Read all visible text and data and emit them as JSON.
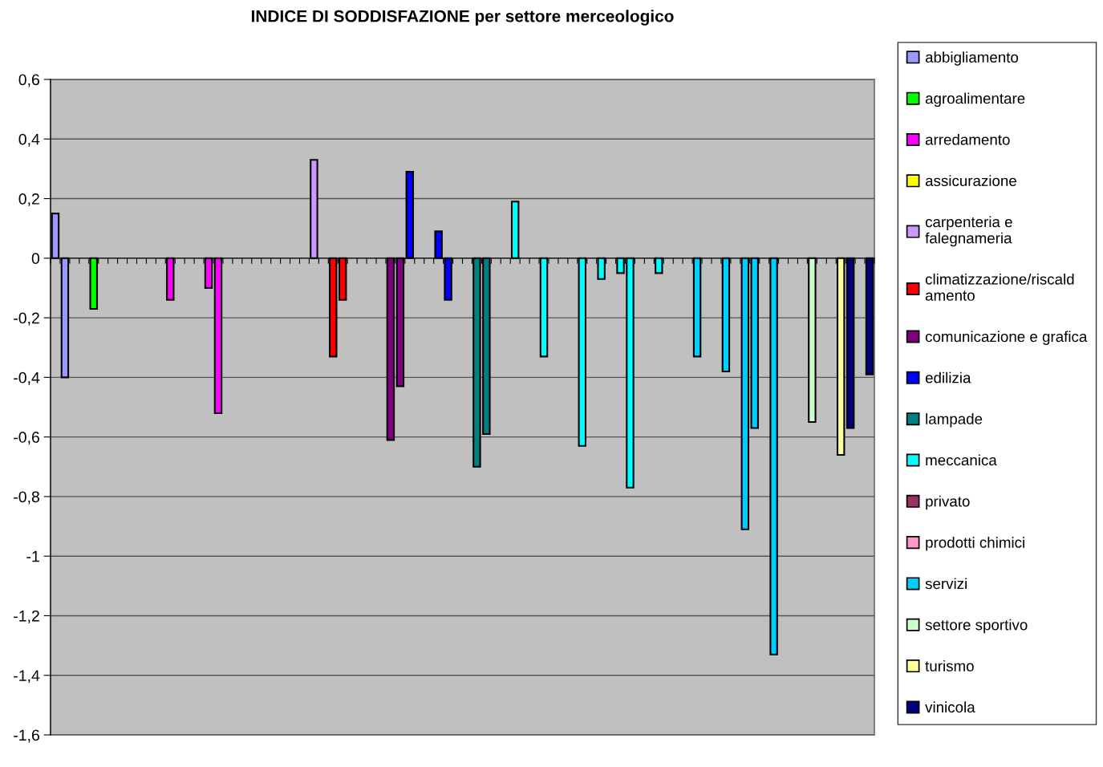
{
  "chart_data": {
    "type": "bar",
    "title": "INDICE DI SODDISFAZIONE per settore merceologico",
    "categories": [
      null,
      null,
      null,
      null,
      null,
      null,
      null,
      null,
      null,
      null,
      null,
      null,
      null,
      null,
      null,
      null,
      null,
      null,
      null,
      null,
      null,
      null,
      null,
      null,
      null,
      null,
      null,
      null,
      null,
      null,
      null,
      null,
      null,
      null,
      null,
      null,
      null,
      null,
      null,
      null,
      null,
      null,
      null,
      null,
      null,
      null,
      null,
      null,
      null,
      null,
      null,
      null,
      null,
      null,
      null,
      null,
      null,
      null,
      null,
      null,
      null,
      null,
      null,
      null,
      null,
      null,
      null,
      null,
      null,
      null,
      null,
      null,
      null,
      null,
      null,
      null,
      null,
      null,
      null,
      null,
      null,
      null,
      null,
      null,
      null,
      null
    ],
    "series": [
      {
        "name": "abbigliamento",
        "color": "#9999ff",
        "values": [
          0.15,
          -0.4,
          null,
          null,
          null,
          null,
          null,
          null,
          null,
          null,
          null,
          null,
          null,
          null,
          null,
          null,
          null,
          null,
          null,
          null,
          null,
          null,
          null,
          null,
          null,
          null,
          null,
          null,
          null,
          null,
          null,
          null,
          null,
          null,
          null,
          null,
          null,
          null,
          null,
          null,
          null,
          null,
          null,
          null,
          null,
          null,
          null,
          null,
          null,
          null,
          null,
          null,
          null,
          null,
          null,
          null,
          null,
          null,
          null,
          null,
          null,
          null,
          null,
          null,
          null,
          null,
          null,
          null,
          null,
          null,
          null,
          null,
          null,
          null,
          null,
          null,
          null,
          null,
          null,
          null,
          null,
          null,
          null,
          null,
          null,
          null
        ]
      },
      {
        "name": "agroalimentare",
        "color": "#00ff00",
        "values": [
          null,
          null,
          null,
          null,
          -0.17,
          null,
          null,
          null,
          null,
          null,
          null,
          null,
          null,
          null,
          null,
          null,
          null,
          null,
          null,
          null,
          null,
          null,
          null,
          null,
          null,
          null,
          null,
          null,
          null,
          null,
          null,
          null,
          null,
          null,
          null,
          null,
          null,
          null,
          null,
          null,
          null,
          null,
          null,
          null,
          null,
          null,
          null,
          null,
          null,
          null,
          null,
          null,
          null,
          null,
          null,
          null,
          null,
          null,
          null,
          null,
          null,
          null,
          null,
          null,
          null,
          null,
          null,
          null,
          null,
          null,
          null,
          null,
          null,
          null,
          null,
          null,
          null,
          null,
          null,
          null,
          null,
          null,
          null,
          null,
          null,
          null
        ]
      },
      {
        "name": "arredamento",
        "color": "#ff00ff",
        "values": [
          null,
          null,
          null,
          null,
          null,
          null,
          null,
          null,
          null,
          null,
          null,
          null,
          -0.14,
          null,
          null,
          null,
          -0.1,
          -0.52,
          null,
          null,
          null,
          null,
          null,
          null,
          null,
          null,
          null,
          null,
          null,
          null,
          null,
          null,
          null,
          null,
          null,
          null,
          null,
          null,
          null,
          null,
          null,
          null,
          null,
          null,
          null,
          null,
          null,
          null,
          null,
          null,
          null,
          null,
          null,
          null,
          null,
          null,
          null,
          null,
          null,
          null,
          null,
          null,
          null,
          null,
          null,
          null,
          null,
          null,
          null,
          null,
          null,
          null,
          null,
          null,
          null,
          null,
          null,
          null,
          null,
          null,
          null,
          null,
          null,
          null,
          null,
          null
        ]
      },
      {
        "name": "assicurazione",
        "color": "#ffff00",
        "values": [
          null,
          null,
          null,
          null,
          null,
          null,
          null,
          null,
          null,
          null,
          null,
          null,
          null,
          null,
          null,
          null,
          null,
          null,
          null,
          null,
          null,
          null,
          null,
          null,
          null,
          null,
          null,
          null,
          null,
          null,
          null,
          null,
          null,
          null,
          null,
          null,
          null,
          null,
          null,
          null,
          null,
          null,
          null,
          null,
          null,
          null,
          null,
          null,
          null,
          null,
          null,
          null,
          null,
          null,
          null,
          null,
          null,
          null,
          null,
          null,
          null,
          null,
          null,
          null,
          null,
          null,
          null,
          null,
          null,
          null,
          null,
          null,
          null,
          null,
          null,
          null,
          null,
          null,
          null,
          null,
          null,
          null,
          null,
          null,
          null,
          null
        ]
      },
      {
        "name": "carpenteria e falegnameria",
        "color": "#cc99ff",
        "values": [
          null,
          null,
          null,
          null,
          null,
          null,
          null,
          null,
          null,
          null,
          null,
          null,
          null,
          null,
          null,
          null,
          null,
          null,
          null,
          null,
          null,
          null,
          null,
          null,
          null,
          null,
          null,
          0.33,
          null,
          null,
          null,
          null,
          null,
          null,
          null,
          null,
          null,
          null,
          null,
          null,
          null,
          null,
          null,
          null,
          null,
          null,
          null,
          null,
          null,
          null,
          null,
          null,
          null,
          null,
          null,
          null,
          null,
          null,
          null,
          null,
          null,
          null,
          null,
          null,
          null,
          null,
          null,
          null,
          null,
          null,
          null,
          null,
          null,
          null,
          null,
          null,
          null,
          null,
          null,
          null,
          null,
          null,
          null,
          null,
          null,
          null
        ]
      },
      {
        "name": "climatizzazione/riscaldamento",
        "color": "#ff0000",
        "values": [
          null,
          null,
          null,
          null,
          null,
          null,
          null,
          null,
          null,
          null,
          null,
          null,
          null,
          null,
          null,
          null,
          null,
          null,
          null,
          null,
          null,
          null,
          null,
          null,
          null,
          null,
          null,
          null,
          null,
          -0.33,
          -0.14,
          null,
          null,
          null,
          null,
          null,
          null,
          null,
          null,
          null,
          null,
          null,
          null,
          null,
          null,
          null,
          null,
          null,
          null,
          null,
          null,
          null,
          null,
          null,
          null,
          null,
          null,
          null,
          null,
          null,
          null,
          null,
          null,
          null,
          null,
          null,
          null,
          null,
          null,
          null,
          null,
          null,
          null,
          null,
          null,
          null,
          null,
          null,
          null,
          null,
          null,
          null,
          null,
          null,
          null,
          null
        ]
      },
      {
        "name": "comunicazione e grafica",
        "color": "#800080",
        "values": [
          null,
          null,
          null,
          null,
          null,
          null,
          null,
          null,
          null,
          null,
          null,
          null,
          null,
          null,
          null,
          null,
          null,
          null,
          null,
          null,
          null,
          null,
          null,
          null,
          null,
          null,
          null,
          null,
          null,
          null,
          null,
          null,
          null,
          null,
          null,
          -0.61,
          -0.43,
          null,
          null,
          null,
          null,
          null,
          null,
          null,
          null,
          null,
          null,
          null,
          null,
          null,
          null,
          null,
          null,
          null,
          null,
          null,
          null,
          null,
          null,
          null,
          null,
          null,
          null,
          null,
          null,
          null,
          null,
          null,
          null,
          null,
          null,
          null,
          null,
          null,
          null,
          null,
          null,
          null,
          null,
          null,
          null,
          null,
          null,
          null,
          null,
          null
        ]
      },
      {
        "name": "edilizia",
        "color": "#0000ff",
        "values": [
          null,
          null,
          null,
          null,
          null,
          null,
          null,
          null,
          null,
          null,
          null,
          null,
          null,
          null,
          null,
          null,
          null,
          null,
          null,
          null,
          null,
          null,
          null,
          null,
          null,
          null,
          null,
          null,
          null,
          null,
          null,
          null,
          null,
          null,
          null,
          null,
          null,
          0.29,
          null,
          null,
          0.09,
          -0.14,
          null,
          null,
          null,
          null,
          null,
          null,
          null,
          null,
          null,
          null,
          null,
          null,
          null,
          null,
          null,
          null,
          null,
          null,
          null,
          null,
          null,
          null,
          null,
          null,
          null,
          null,
          null,
          null,
          null,
          null,
          null,
          null,
          null,
          null,
          null,
          null,
          null,
          null,
          null,
          null,
          null,
          null,
          null,
          null
        ]
      },
      {
        "name": "lampade",
        "color": "#008080",
        "values": [
          null,
          null,
          null,
          null,
          null,
          null,
          null,
          null,
          null,
          null,
          null,
          null,
          null,
          null,
          null,
          null,
          null,
          null,
          null,
          null,
          null,
          null,
          null,
          null,
          null,
          null,
          null,
          null,
          null,
          null,
          null,
          null,
          null,
          null,
          null,
          null,
          null,
          null,
          null,
          null,
          null,
          null,
          null,
          null,
          -0.7,
          -0.59,
          null,
          null,
          null,
          null,
          null,
          null,
          null,
          null,
          null,
          null,
          null,
          null,
          null,
          null,
          null,
          null,
          null,
          null,
          null,
          null,
          null,
          null,
          null,
          null,
          null,
          null,
          null,
          null,
          null,
          null,
          null,
          null,
          null,
          null,
          null,
          null,
          null,
          null,
          null,
          null
        ]
      },
      {
        "name": "meccanica",
        "color": "#00ffff",
        "values": [
          null,
          null,
          null,
          null,
          null,
          null,
          null,
          null,
          null,
          null,
          null,
          null,
          null,
          null,
          null,
          null,
          null,
          null,
          null,
          null,
          null,
          null,
          null,
          null,
          null,
          null,
          null,
          null,
          null,
          null,
          null,
          null,
          null,
          null,
          null,
          null,
          null,
          null,
          null,
          null,
          null,
          null,
          null,
          null,
          null,
          null,
          null,
          null,
          0.19,
          null,
          null,
          -0.33,
          null,
          null,
          null,
          -0.63,
          null,
          -0.07,
          null,
          -0.05,
          -0.77,
          null,
          null,
          -0.05,
          null,
          null,
          null,
          null,
          null,
          null,
          null,
          null,
          null,
          null,
          null,
          null,
          null,
          null,
          null,
          null,
          null,
          null,
          null,
          null,
          null,
          null
        ]
      },
      {
        "name": "privato",
        "color": "#993366",
        "values": [
          null,
          null,
          null,
          null,
          null,
          null,
          null,
          null,
          null,
          null,
          null,
          null,
          null,
          null,
          null,
          null,
          null,
          null,
          null,
          null,
          null,
          null,
          null,
          null,
          null,
          null,
          null,
          null,
          null,
          null,
          null,
          null,
          null,
          null,
          null,
          null,
          null,
          null,
          null,
          null,
          null,
          null,
          null,
          null,
          null,
          null,
          null,
          null,
          null,
          null,
          null,
          null,
          null,
          null,
          null,
          null,
          null,
          null,
          null,
          null,
          null,
          null,
          null,
          null,
          null,
          null,
          null,
          null,
          null,
          null,
          null,
          null,
          null,
          null,
          null,
          null,
          null,
          null,
          null,
          null,
          null,
          null,
          null,
          null,
          null,
          null
        ]
      },
      {
        "name": "prodotti chimici",
        "color": "#ff99cc",
        "values": [
          null,
          null,
          null,
          null,
          null,
          null,
          null,
          null,
          null,
          null,
          null,
          null,
          null,
          null,
          null,
          null,
          null,
          null,
          null,
          null,
          null,
          null,
          null,
          null,
          null,
          null,
          null,
          null,
          null,
          null,
          null,
          null,
          null,
          null,
          null,
          null,
          null,
          null,
          null,
          null,
          null,
          null,
          null,
          null,
          null,
          null,
          null,
          null,
          null,
          null,
          null,
          null,
          null,
          null,
          null,
          null,
          null,
          null,
          null,
          null,
          null,
          null,
          null,
          null,
          null,
          null,
          null,
          null,
          null,
          null,
          null,
          null,
          null,
          null,
          null,
          null,
          null,
          null,
          null,
          null,
          null,
          null,
          null,
          null,
          null,
          null
        ]
      },
      {
        "name": "servizi",
        "color": "#00ccff",
        "values": [
          null,
          null,
          null,
          null,
          null,
          null,
          null,
          null,
          null,
          null,
          null,
          null,
          null,
          null,
          null,
          null,
          null,
          null,
          null,
          null,
          null,
          null,
          null,
          null,
          null,
          null,
          null,
          null,
          null,
          null,
          null,
          null,
          null,
          null,
          null,
          null,
          null,
          null,
          null,
          null,
          null,
          null,
          null,
          null,
          null,
          null,
          null,
          null,
          null,
          null,
          null,
          null,
          null,
          null,
          null,
          null,
          null,
          null,
          null,
          null,
          null,
          null,
          null,
          null,
          null,
          null,
          null,
          -0.33,
          null,
          null,
          -0.38,
          null,
          -0.91,
          -0.57,
          null,
          -1.33,
          null,
          null,
          null,
          null,
          null,
          null,
          null,
          null,
          null,
          null
        ]
      },
      {
        "name": "settore sportivo",
        "color": "#ccffcc",
        "values": [
          null,
          null,
          null,
          null,
          null,
          null,
          null,
          null,
          null,
          null,
          null,
          null,
          null,
          null,
          null,
          null,
          null,
          null,
          null,
          null,
          null,
          null,
          null,
          null,
          null,
          null,
          null,
          null,
          null,
          null,
          null,
          null,
          null,
          null,
          null,
          null,
          null,
          null,
          null,
          null,
          null,
          null,
          null,
          null,
          null,
          null,
          null,
          null,
          null,
          null,
          null,
          null,
          null,
          null,
          null,
          null,
          null,
          null,
          null,
          null,
          null,
          null,
          null,
          null,
          null,
          null,
          null,
          null,
          null,
          null,
          null,
          null,
          null,
          null,
          null,
          null,
          null,
          null,
          null,
          -0.55,
          null,
          null,
          null,
          null,
          null,
          null
        ]
      },
      {
        "name": "turismo",
        "color": "#ffff99",
        "values": [
          null,
          null,
          null,
          null,
          null,
          null,
          null,
          null,
          null,
          null,
          null,
          null,
          null,
          null,
          null,
          null,
          null,
          null,
          null,
          null,
          null,
          null,
          null,
          null,
          null,
          null,
          null,
          null,
          null,
          null,
          null,
          null,
          null,
          null,
          null,
          null,
          null,
          null,
          null,
          null,
          null,
          null,
          null,
          null,
          null,
          null,
          null,
          null,
          null,
          null,
          null,
          null,
          null,
          null,
          null,
          null,
          null,
          null,
          null,
          null,
          null,
          null,
          null,
          null,
          null,
          null,
          null,
          null,
          null,
          null,
          null,
          null,
          null,
          null,
          null,
          null,
          null,
          null,
          null,
          null,
          null,
          null,
          -0.66,
          null,
          null,
          null
        ]
      },
      {
        "name": "vinicola",
        "color": "#000080",
        "values": [
          null,
          null,
          null,
          null,
          null,
          null,
          null,
          null,
          null,
          null,
          null,
          null,
          null,
          null,
          null,
          null,
          null,
          null,
          null,
          null,
          null,
          null,
          null,
          null,
          null,
          null,
          null,
          null,
          null,
          null,
          null,
          null,
          null,
          null,
          null,
          null,
          null,
          null,
          null,
          null,
          null,
          null,
          null,
          null,
          null,
          null,
          null,
          null,
          null,
          null,
          null,
          null,
          null,
          null,
          null,
          null,
          null,
          null,
          null,
          null,
          null,
          null,
          null,
          null,
          null,
          null,
          null,
          null,
          null,
          null,
          null,
          null,
          null,
          null,
          null,
          null,
          null,
          null,
          null,
          null,
          null,
          null,
          null,
          -0.57,
          null,
          -0.39
        ]
      }
    ],
    "ylim": [
      -1.6,
      0.6
    ],
    "yticks": [
      {
        "value": 0.6,
        "label": "0,6"
      },
      {
        "value": 0.4,
        "label": "0,4"
      },
      {
        "value": 0.2,
        "label": "0,2"
      },
      {
        "value": 0,
        "label": "0"
      },
      {
        "value": -0.2,
        "label": "-0,2"
      },
      {
        "value": -0.4,
        "label": "-0,4"
      },
      {
        "value": -0.6,
        "label": "-0,6"
      },
      {
        "value": -0.8,
        "label": "-0,8"
      },
      {
        "value": -1,
        "label": "-1"
      },
      {
        "value": -1.2,
        "label": "-1,2"
      },
      {
        "value": -1.4,
        "label": "-1,4"
      },
      {
        "value": -1.6,
        "label": "-1,6"
      }
    ],
    "grid": "y",
    "legend": "right"
  }
}
